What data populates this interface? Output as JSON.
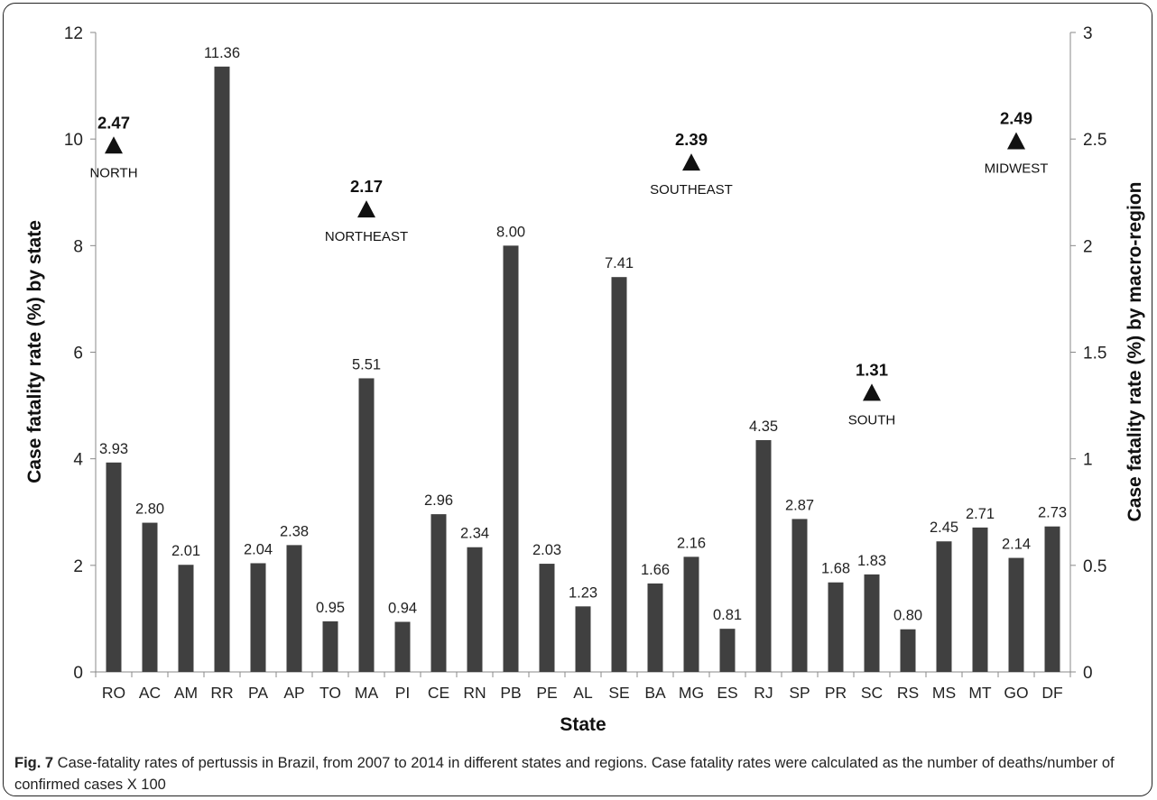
{
  "chart_data": {
    "type": "bar",
    "categories": [
      "RO",
      "AC",
      "AM",
      "RR",
      "PA",
      "AP",
      "TO",
      "MA",
      "PI",
      "CE",
      "RN",
      "PB",
      "PE",
      "AL",
      "SE",
      "BA",
      "MG",
      "ES",
      "RJ",
      "SP",
      "PR",
      "SC",
      "RS",
      "MS",
      "MT",
      "GO",
      "DF"
    ],
    "values": [
      3.93,
      2.8,
      2.01,
      11.36,
      2.04,
      2.38,
      0.95,
      5.51,
      0.94,
      2.96,
      2.34,
      8.0,
      2.03,
      1.23,
      7.41,
      1.66,
      2.16,
      0.81,
      4.35,
      2.87,
      1.68,
      1.83,
      0.8,
      2.45,
      2.71,
      2.14,
      2.73
    ],
    "value_labels": [
      "3.93",
      "2.80",
      "2.01",
      "11.36",
      "2.04",
      "2.38",
      "0.95",
      "5.51",
      "0.94",
      "2.96",
      "2.34",
      "8.00",
      "2.03",
      "1.23",
      "7.41",
      "1.66",
      "2.16",
      "0.81",
      "4.35",
      "2.87",
      "1.68",
      "1.83",
      "0.80",
      "2.45",
      "2.71",
      "2.14",
      "2.73"
    ],
    "bar_color": "#404040",
    "xlabel": "State",
    "ylabel": "Case fatality rate (%) by state",
    "ylabel_right": "Case fatality rate (%) by macro-region",
    "ylim": [
      0,
      12
    ],
    "yticks": [
      "0",
      "2",
      "4",
      "6",
      "8",
      "10",
      "12"
    ],
    "ylim_right": [
      0,
      3
    ],
    "yticks_right": [
      "0",
      "0.5",
      "1",
      "1.5",
      "2",
      "2.5",
      "3"
    ],
    "macro_regions": [
      {
        "name": "NORTH",
        "value": 2.47,
        "label": "2.47",
        "x_position": 0.5
      },
      {
        "name": "NORTHEAST",
        "value": 2.17,
        "label": "2.17",
        "x_position": 7.5
      },
      {
        "name": "SOUTHEAST",
        "value": 2.39,
        "label": "2.39",
        "x_position": 16.5
      },
      {
        "name": "SOUTH",
        "value": 1.31,
        "label": "1.31",
        "x_position": 21.5
      },
      {
        "name": "MIDWEST",
        "value": 2.49,
        "label": "2.49",
        "x_position": 25.5
      }
    ]
  },
  "caption": {
    "fig_label": "Fig. 7",
    "text": " Case-fatality rates of pertussis in Brazil, from 2007 to 2014 in different states and regions. Case fatality rates were calculated as the number of deaths/number of confirmed cases X 100"
  }
}
